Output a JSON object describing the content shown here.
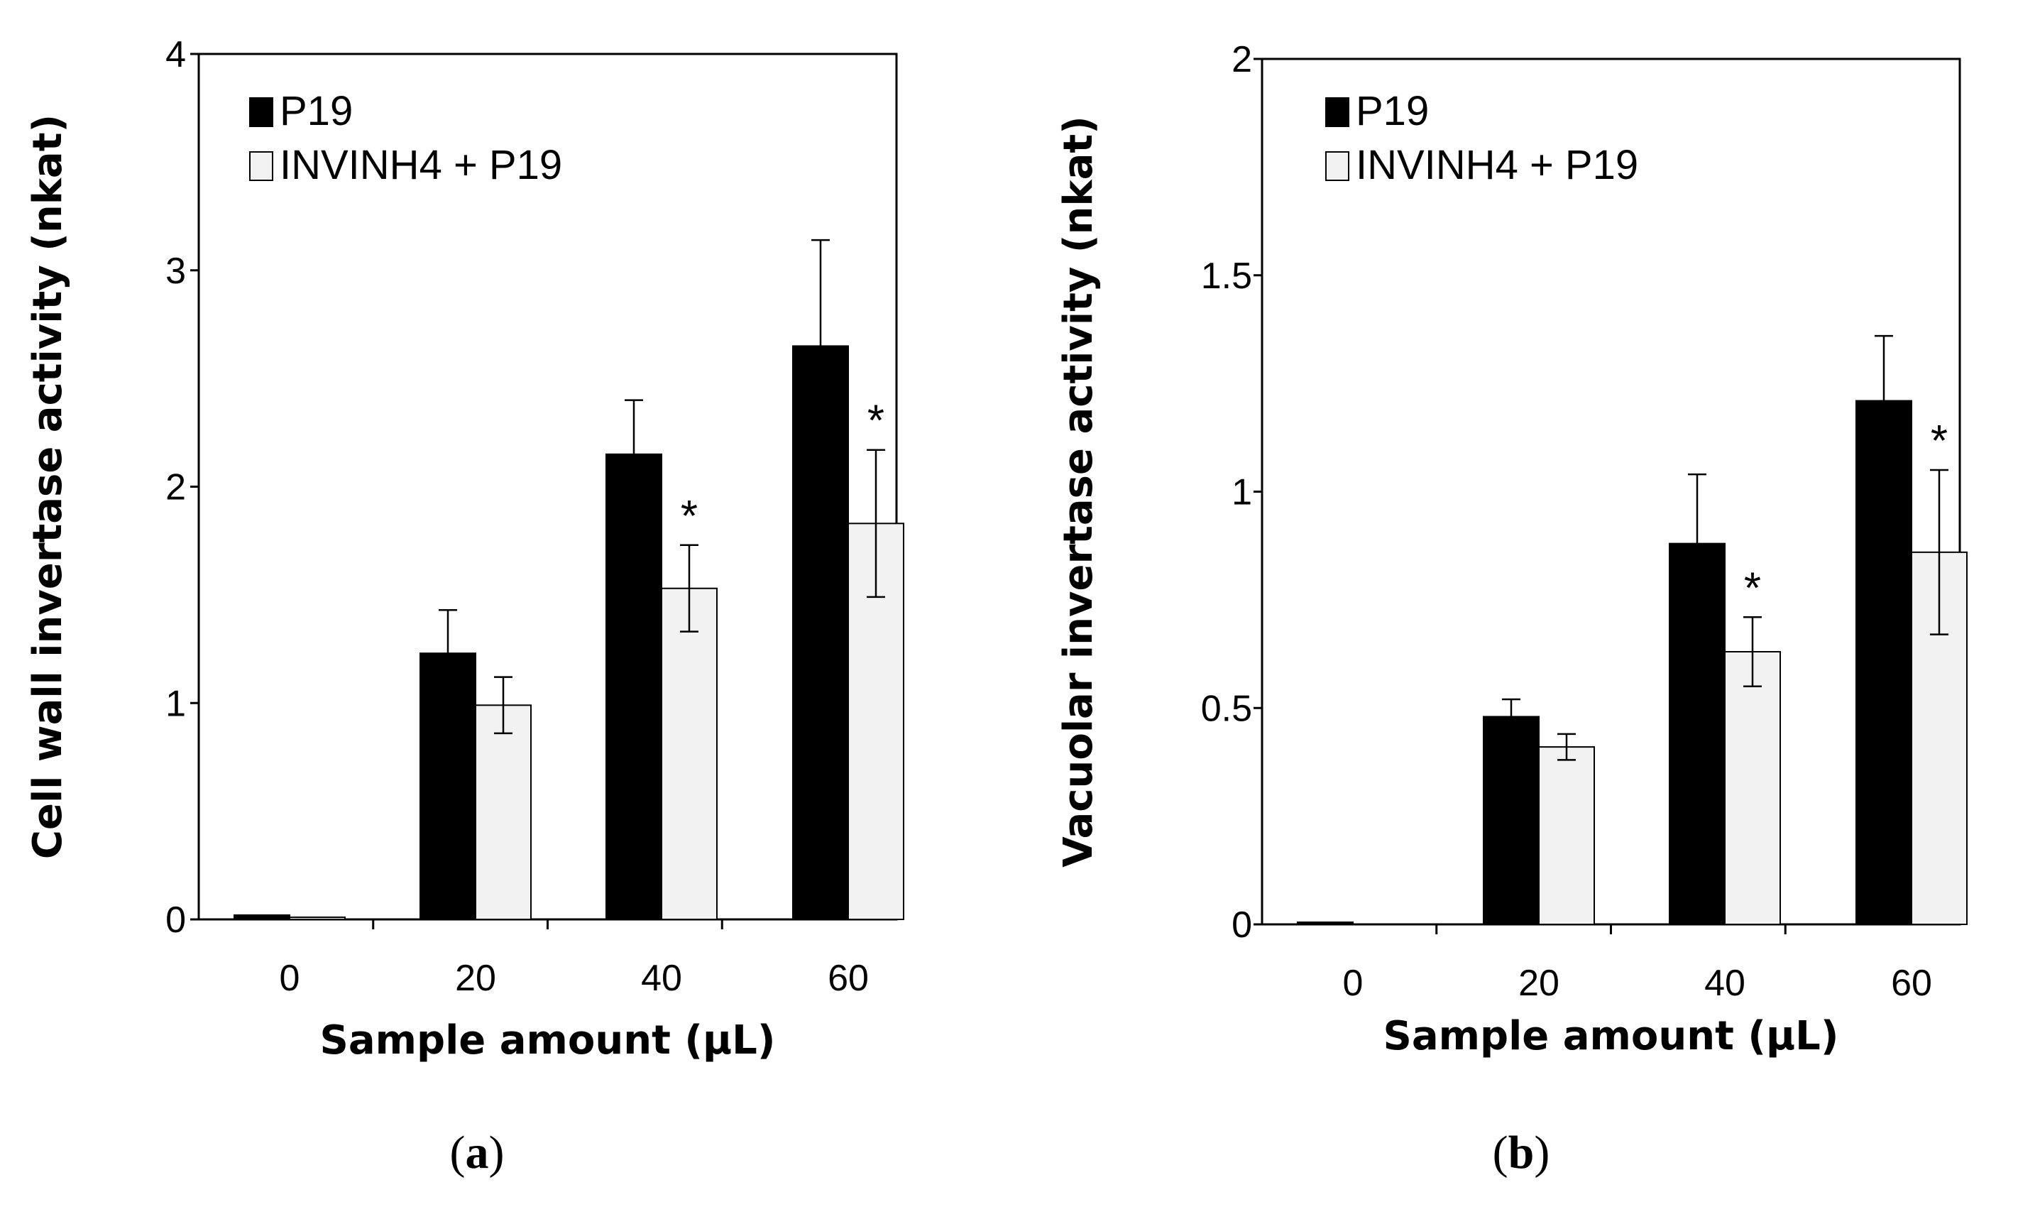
{
  "chart_data": [
    {
      "panel_label": "(a)",
      "panel_letter": "a",
      "type": "bar",
      "xlabel": "Sample amount (μL)",
      "ylabel": "Cell wall invertase activity (nkat)",
      "ylim": [
        0,
        4
      ],
      "yticks": [
        0,
        1,
        2,
        3,
        4
      ],
      "ytick_labels": [
        "0",
        "1",
        "2",
        "3",
        "4"
      ],
      "categories": [
        "0",
        "20",
        "40",
        "60"
      ],
      "legend_position": "top-left",
      "series": [
        {
          "name": "P19",
          "color": "#000000",
          "values": [
            0.02,
            1.23,
            2.15,
            2.65
          ],
          "errors": [
            0,
            0.2,
            0.25,
            0.49
          ]
        },
        {
          "name": "INVINH4 + P19",
          "color": "#f2f2f2",
          "values": [
            0.01,
            0.99,
            1.53,
            1.83
          ],
          "errors": [
            0,
            0.13,
            0.2,
            0.34
          ]
        }
      ],
      "significance": [
        {
          "series": 1,
          "category": 2,
          "label": "*"
        },
        {
          "series": 1,
          "category": 3,
          "label": "*"
        }
      ]
    },
    {
      "panel_label": "(b)",
      "panel_letter": "b",
      "type": "bar",
      "xlabel": "Sample amount (μL)",
      "ylabel": "Vacuolar invertase activity (nkat)",
      "ylim": [
        0,
        2
      ],
      "yticks": [
        0,
        0.5,
        1,
        1.5,
        2
      ],
      "ytick_labels": [
        "0",
        "0.5",
        "1",
        "1.5",
        "2"
      ],
      "categories": [
        "0",
        "20",
        "40",
        "60"
      ],
      "legend_position": "top-left",
      "series": [
        {
          "name": "P19",
          "color": "#000000",
          "values": [
            0.005,
            0.48,
            0.88,
            1.21
          ],
          "errors": [
            0,
            0.04,
            0.16,
            0.15
          ]
        },
        {
          "name": "INVINH4 + P19",
          "color": "#f2f2f2",
          "values": [
            0.0,
            0.41,
            0.63,
            0.86
          ],
          "errors": [
            0,
            0.03,
            0.08,
            0.19
          ]
        }
      ],
      "significance": [
        {
          "series": 1,
          "category": 2,
          "label": "*"
        },
        {
          "series": 1,
          "category": 3,
          "label": "*"
        }
      ]
    }
  ]
}
